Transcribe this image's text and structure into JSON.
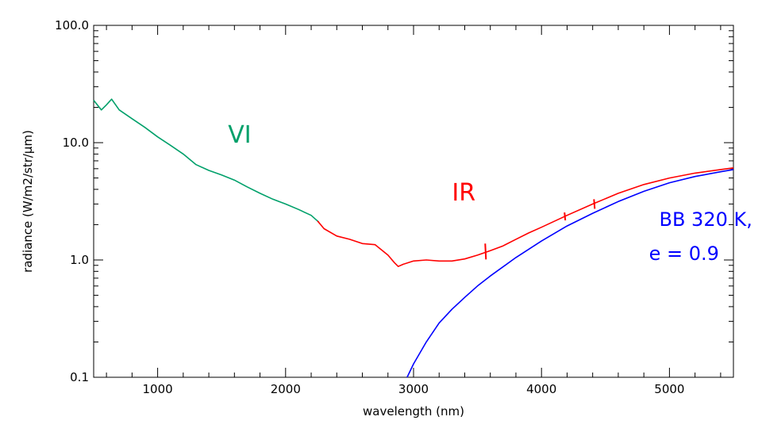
{
  "chart_data": {
    "type": "line",
    "title": "",
    "xlabel": "wavelength (nm)",
    "ylabel": "radiance (W/m2/str/µm)",
    "xlim": [
      500,
      5500
    ],
    "ylim": [
      0.1,
      100
    ],
    "yscale": "log",
    "grid": false,
    "x_ticks": [
      {
        "value": 1000,
        "label": "1000"
      },
      {
        "value": 2000,
        "label": "2000"
      },
      {
        "value": 3000,
        "label": "3000"
      },
      {
        "value": 4000,
        "label": "4000"
      },
      {
        "value": 5000,
        "label": "5000"
      }
    ],
    "y_ticks": [
      {
        "value": 0.1,
        "label": "0.1"
      },
      {
        "value": 1,
        "label": "1.0"
      },
      {
        "value": 10,
        "label": "10.0"
      },
      {
        "value": 100,
        "label": "100.0"
      }
    ],
    "series": [
      {
        "name": "VI",
        "color": "#00a06a",
        "points": [
          [
            500,
            23
          ],
          [
            560,
            19
          ],
          [
            600,
            21
          ],
          [
            640,
            23.5
          ],
          [
            700,
            19
          ],
          [
            800,
            16
          ],
          [
            900,
            13.5
          ],
          [
            1000,
            11.2
          ],
          [
            1100,
            9.5
          ],
          [
            1200,
            8
          ],
          [
            1300,
            6.5
          ],
          [
            1400,
            5.8
          ],
          [
            1500,
            5.3
          ],
          [
            1600,
            4.8
          ],
          [
            1700,
            4.2
          ],
          [
            1800,
            3.7
          ],
          [
            1900,
            3.3
          ],
          [
            2000,
            3.0
          ],
          [
            2100,
            2.7
          ],
          [
            2200,
            2.4
          ],
          [
            2260,
            2.1
          ]
        ]
      },
      {
        "name": "IR",
        "color": "#ff0000",
        "points": [
          [
            2250,
            2.15
          ],
          [
            2300,
            1.85
          ],
          [
            2400,
            1.6
          ],
          [
            2500,
            1.5
          ],
          [
            2600,
            1.38
          ],
          [
            2700,
            1.35
          ],
          [
            2800,
            1.1
          ],
          [
            2850,
            0.95
          ],
          [
            2880,
            0.88
          ],
          [
            2920,
            0.92
          ],
          [
            3000,
            0.98
          ],
          [
            3100,
            1.0
          ],
          [
            3200,
            0.98
          ],
          [
            3300,
            0.98
          ],
          [
            3400,
            1.02
          ],
          [
            3500,
            1.1
          ],
          [
            3600,
            1.2
          ],
          [
            3700,
            1.32
          ],
          [
            3800,
            1.5
          ],
          [
            3900,
            1.7
          ],
          [
            4000,
            1.9
          ],
          [
            4200,
            2.4
          ],
          [
            4400,
            3.0
          ],
          [
            4600,
            3.7
          ],
          [
            4800,
            4.4
          ],
          [
            5000,
            5.0
          ],
          [
            5200,
            5.5
          ],
          [
            5400,
            5.9
          ],
          [
            5500,
            6.1
          ]
        ]
      },
      {
        "name": "BB 320 K, e = 0.9",
        "color": "#0000ff",
        "points": [
          [
            2950,
            0.1
          ],
          [
            3000,
            0.13
          ],
          [
            3100,
            0.2
          ],
          [
            3200,
            0.29
          ],
          [
            3300,
            0.38
          ],
          [
            3400,
            0.48
          ],
          [
            3500,
            0.6
          ],
          [
            3600,
            0.73
          ],
          [
            3800,
            1.05
          ],
          [
            4000,
            1.45
          ],
          [
            4200,
            1.95
          ],
          [
            4400,
            2.5
          ],
          [
            4600,
            3.15
          ],
          [
            4800,
            3.85
          ],
          [
            5000,
            4.55
          ],
          [
            5200,
            5.15
          ],
          [
            5400,
            5.65
          ],
          [
            5500,
            5.9
          ]
        ]
      }
    ],
    "annotations": [
      {
        "id": "vi",
        "text": "VI",
        "x": 1550,
        "y": 10,
        "color": "#00a06a"
      },
      {
        "id": "ir",
        "text": "IR",
        "x": 3300,
        "y": 3.2,
        "color": "#ff0000"
      },
      {
        "id": "bb1",
        "text": "BB 320 K,",
        "x": 4920,
        "y": 1.95,
        "color": "#0000ff"
      },
      {
        "id": "bb2",
        "text": "e = 0.9",
        "x": 4840,
        "y": 1.0,
        "color": "#0000ff"
      }
    ]
  }
}
